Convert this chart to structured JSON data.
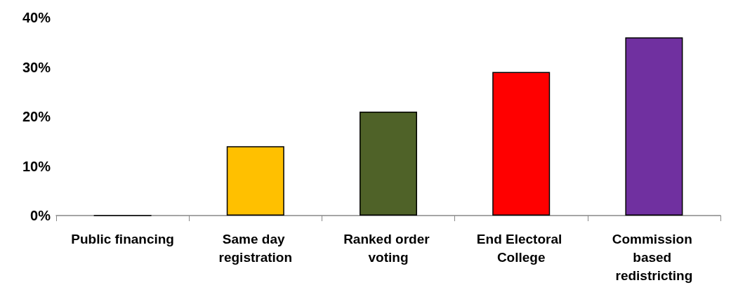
{
  "chart_data": {
    "type": "bar",
    "categories": [
      "Public financing",
      "Same day registration",
      "Ranked order voting",
      "End Electoral College",
      "Commission based redistricting"
    ],
    "values": [
      0,
      14,
      21,
      29,
      36
    ],
    "colors": [
      "#000000",
      "#ffc000",
      "#4f6228",
      "#ff0000",
      "#7030a0"
    ],
    "ylim": [
      0,
      40
    ],
    "yticks": [
      {
        "value": 0,
        "label": "0%"
      },
      {
        "value": 10,
        "label": "10%"
      },
      {
        "value": 20,
        "label": "20%"
      },
      {
        "value": 30,
        "label": "30%"
      },
      {
        "value": 40,
        "label": "40%"
      }
    ],
    "grid": false
  }
}
